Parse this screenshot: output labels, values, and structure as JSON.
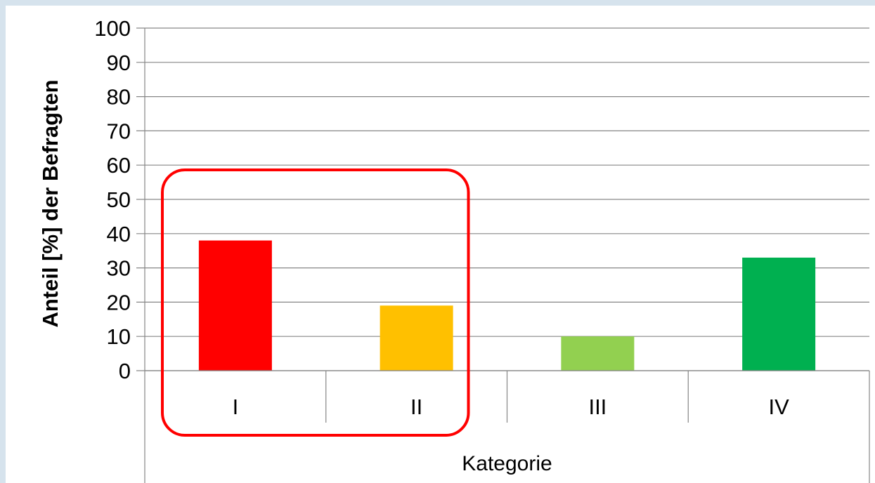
{
  "chart_data": {
    "type": "bar",
    "categories": [
      "I",
      "II",
      "III",
      "IV"
    ],
    "values": [
      38,
      19,
      10,
      33
    ],
    "colors": [
      "#ff0000",
      "#ffc000",
      "#92d050",
      "#00b050"
    ],
    "ylabel": "Anteil [%] der Befragten",
    "xlabel": "Kategorie",
    "ylim": [
      0,
      100
    ],
    "yticks": [
      "0",
      "10",
      "20",
      "30",
      "40",
      "50",
      "60",
      "70",
      "80",
      "90",
      "100"
    ],
    "grid": true,
    "legend": "none",
    "highlight": {
      "categories": [
        "I",
        "II"
      ],
      "color": "#ff0000"
    }
  }
}
